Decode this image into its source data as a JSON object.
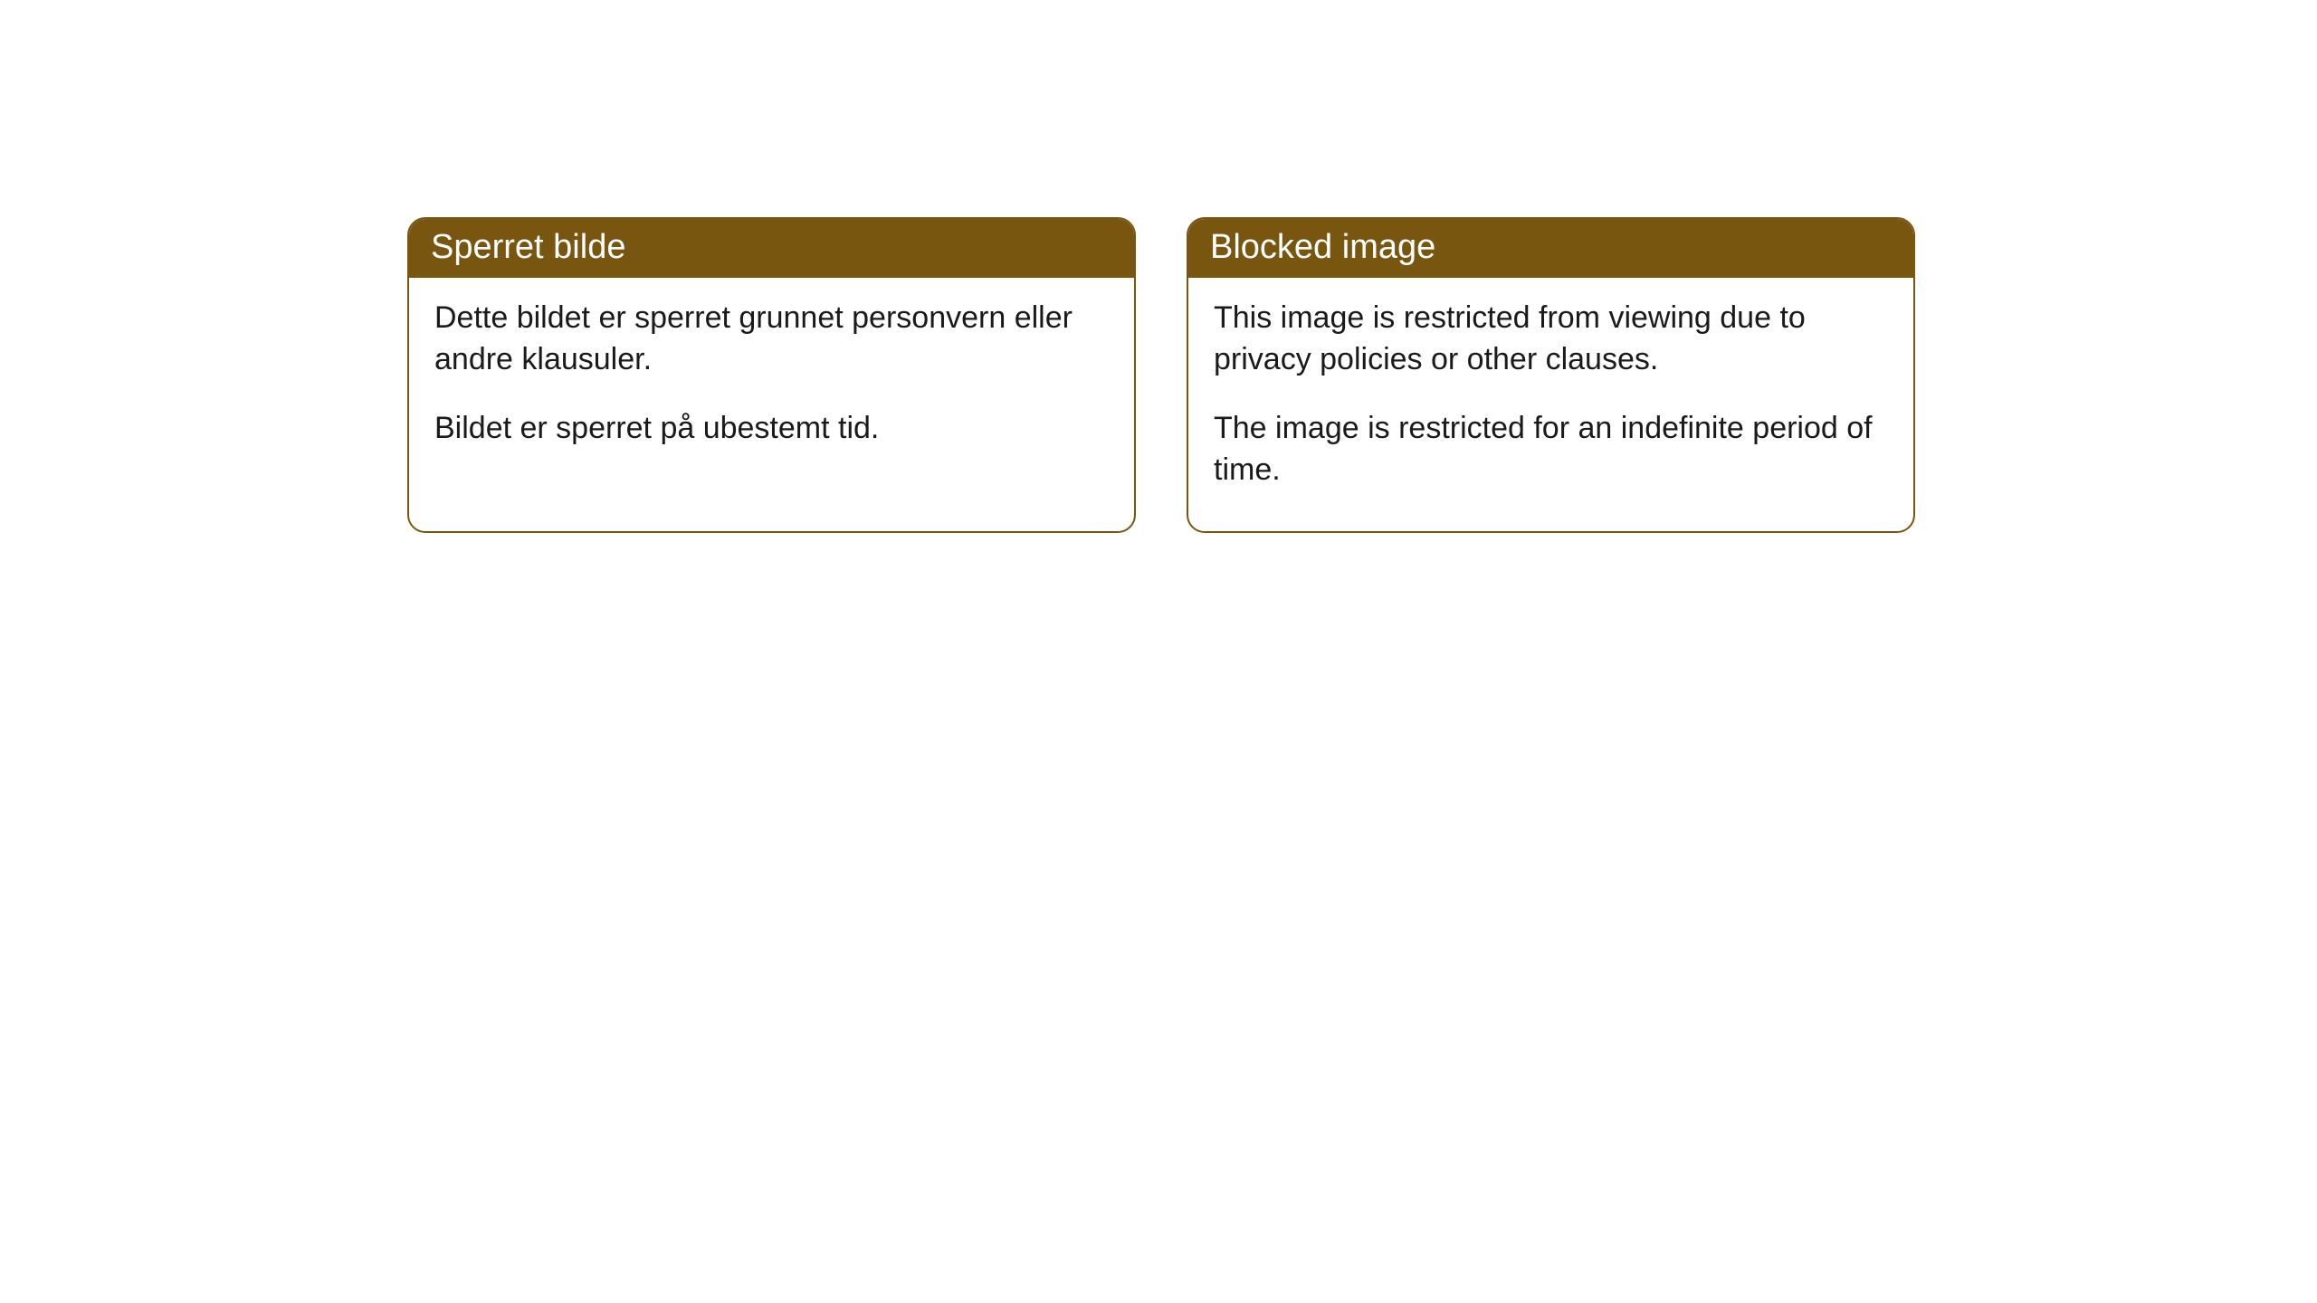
{
  "cards": [
    {
      "title": "Sperret bilde",
      "paragraph1": "Dette bildet er sperret grunnet personvern eller andre klausuler.",
      "paragraph2": "Bildet er sperret på ubestemt tid."
    },
    {
      "title": "Blocked image",
      "paragraph1": "This image is restricted from viewing due to privacy policies or other clauses.",
      "paragraph2": "The image is restricted for an indefinite period of time."
    }
  ],
  "style": {
    "header_bg": "#78560f",
    "header_text_color": "#ffffff",
    "body_text_color": "#1a1a1a",
    "card_border_color": "#78560f",
    "card_bg": "#ffffff",
    "page_bg": "#ffffff",
    "border_radius": 20,
    "header_fontsize": 38,
    "body_fontsize": 34
  }
}
